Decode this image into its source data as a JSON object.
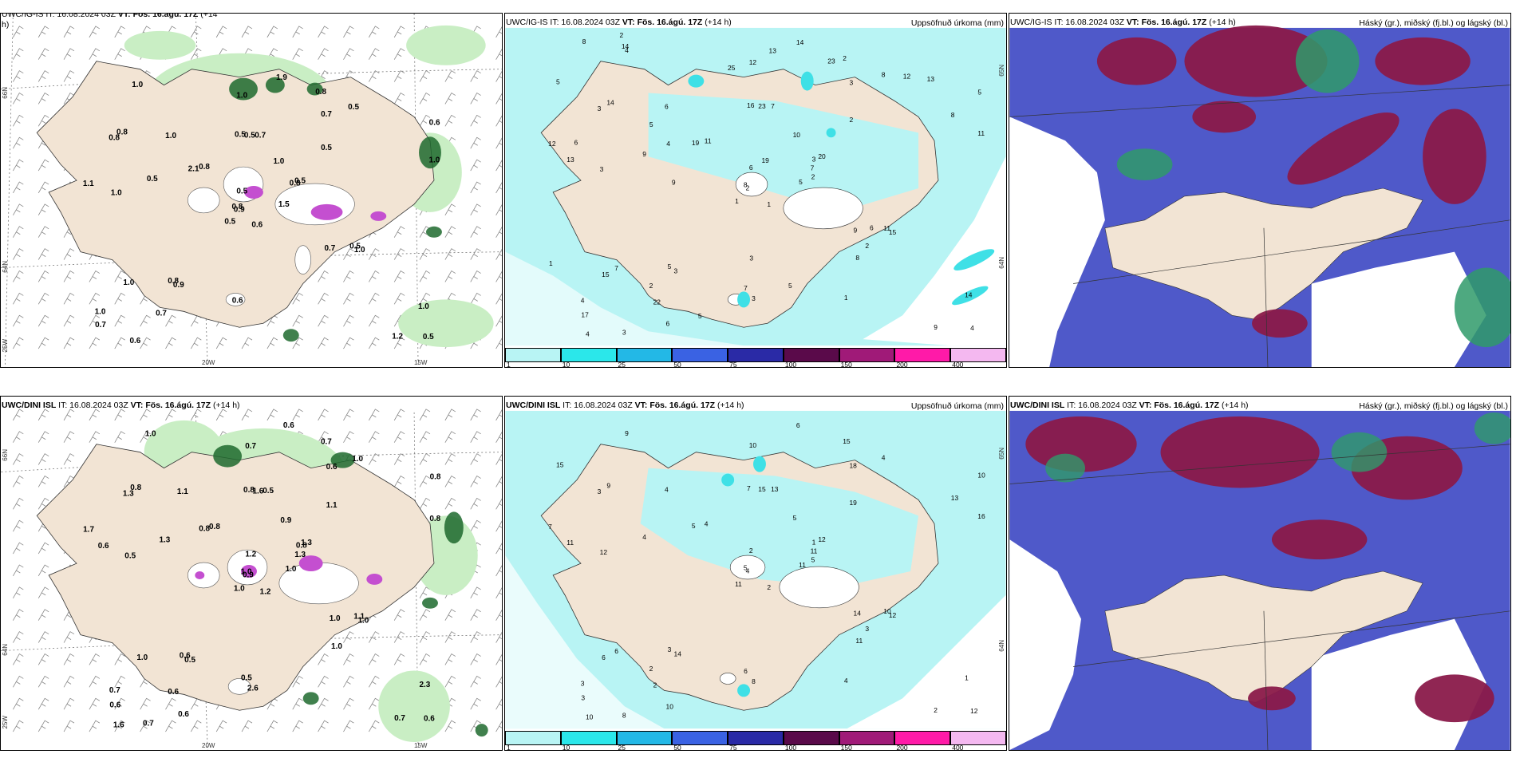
{
  "colors": {
    "land": "#f2e4d4",
    "sea_bg": "#ffffff",
    "precip_light": "#b8f4f4",
    "precip_mid": "#3fe0e6",
    "green_light": "#c9eec4",
    "green_mid": "#8ed68a",
    "green_dark": "#1e6a2e",
    "violet": "#c44fd0",
    "cloud_low": "#4f59c9",
    "cloud_high": "#8a1a4a",
    "cloud_mid_green": "#2f9a6a"
  },
  "rows": [
    {
      "model": "UWC/IG-IS",
      "panels": [
        {
          "title_model": "UWC/IG-IS",
          "title_it": "IT: 16.08.2024 03Z",
          "title_vt": "VT: Fös. 16.ágú. 17Z",
          "title_lead": "(+14",
          "title_lead2": "h)",
          "lat_labels": [
            "66N",
            "64N",
            "25W"
          ],
          "lon_labels": [
            "20W",
            "15W"
          ],
          "values": [
            "0.6",
            "0.8",
            "0.9",
            "1.0",
            "0.8",
            "0.9",
            "0.8",
            "0.7",
            "0.7",
            "1.5",
            "1.0",
            "0.5",
            "1.0",
            "0.6",
            "0.5",
            "0.5",
            "0.6",
            "0.5",
            "1.0",
            "1.0",
            "0.8",
            "0.7",
            "0.7",
            "0.5",
            "0.5",
            "1.0",
            "0.8",
            "1.0",
            "1.1",
            "0.7",
            "1.0",
            "0.8",
            "0.6",
            "0.5",
            "1.0",
            "0.5",
            "0.8",
            "1.2",
            "1.0",
            "0.5",
            "1.9",
            "2.1",
            "0.5"
          ]
        },
        {
          "title_model": "UWC/IG-IS",
          "title_it": "IT: 16.08.2024 03Z",
          "title_vt": "VT: Fös. 16.ágú. 17Z",
          "title_lead": "(+14 h)",
          "right_label": "Uppsöfnuð úrkoma (mm)",
          "lat_labels": [
            "65N",
            "64N"
          ],
          "values": [
            "1",
            "3",
            "2",
            "4",
            "3",
            "3",
            "2",
            "7",
            "3",
            "5",
            "4",
            "4",
            "3",
            "5",
            "1",
            "2",
            "3",
            "16",
            "10",
            "7",
            "11",
            "17",
            "22",
            "23",
            "20",
            "15",
            "14",
            "12",
            "13",
            "9",
            "11",
            "8",
            "7",
            "6",
            "6",
            "8",
            "5",
            "9",
            "14",
            "11",
            "14",
            "19",
            "9",
            "8",
            "6",
            "12",
            "7",
            "4",
            "3",
            "2",
            "15",
            "8",
            "5",
            "2",
            "1",
            "2",
            "14",
            "8",
            "5",
            "13",
            "13",
            "9",
            "6",
            "5",
            "12",
            "2",
            "23",
            "25",
            "19",
            "1",
            "3",
            "5",
            "6",
            "4"
          ]
        },
        {
          "title_model": "UWC/IG-IS",
          "title_it": "IT: 16.08.2024 03Z",
          "title_vt": "VT: Fös. 16.ágú. 17Z",
          "title_lead": "(+14 h)",
          "right_label": "Háský (gr.), miðský (fj.bl.) og lágský (bl.)"
        }
      ]
    },
    {
      "model": "UWC/DINI ISL",
      "panels": [
        {
          "title_model": "UWC/DINI ISL",
          "title_it": "IT: 16.08.2024 03Z",
          "title_vt": "VT: Fös. 16.ágú. 17Z",
          "title_lead": "(+14 h)",
          "lat_labels": [
            "66N",
            "64N",
            "25W"
          ],
          "lon_labels": [
            "20W",
            "15W"
          ],
          "values": [
            "1.2",
            "1.3",
            "0.9",
            "0.7",
            "0.8",
            "0.5",
            "0.7",
            "0.5",
            "0.6",
            "1.0",
            "1.0",
            "0.6",
            "0.5",
            "0.8",
            "1.0",
            "1.1",
            "0.7",
            "0.8",
            "0.9",
            "1.0",
            "0.8",
            "0.6",
            "0.6",
            "1.6",
            "1.3",
            "1.0",
            "0.8",
            "0.7",
            "0.6",
            "1.0",
            "0.8",
            "1.0",
            "0.5",
            "1.2",
            "1.1",
            "1.0",
            "0.6",
            "0.7",
            "2.3",
            "1.1",
            "0.6",
            "0.8",
            "1.3",
            "1.0",
            "0.6",
            "1.7",
            "1.3",
            "1.6",
            "2.6"
          ]
        },
        {
          "title_model": "UWC/DINI ISL",
          "title_it": "IT: 16.08.2024 03Z",
          "title_vt": "VT: Fös. 16.ágú. 17Z",
          "title_lead": "(+14 h)",
          "right_label": "Uppsöfnuð úrkoma (mm)",
          "lat_labels": [
            "65N",
            "64N"
          ],
          "values": [
            "2",
            "3",
            "4",
            "3",
            "1",
            "14",
            "15",
            "13",
            "18",
            "11",
            "9",
            "12",
            "12",
            "10",
            "11",
            "19",
            "8",
            "7",
            "5",
            "6",
            "4",
            "3",
            "2",
            "15",
            "12",
            "12",
            "9",
            "10",
            "11",
            "14",
            "16",
            "5",
            "6",
            "2",
            "4",
            "4",
            "3",
            "2",
            "1",
            "10",
            "6",
            "5",
            "4",
            "11",
            "10",
            "7",
            "11",
            "10",
            "8",
            "5",
            "6",
            "13",
            "15",
            "3",
            "4",
            "2"
          ]
        },
        {
          "title_model": "UWC/DINI ISL",
          "title_it": "IT: 16.08.2024 03Z",
          "title_vt": "VT: Fös. 16.ágú. 17Z",
          "title_lead": "(+14 h)",
          "right_label": "Háský (gr.), miðský (fj.bl.) og lágský (bl.)"
        }
      ]
    }
  ],
  "colorbar": {
    "ticks": [
      "1",
      "10",
      "25",
      "50",
      "75",
      "100",
      "150",
      "200",
      "400"
    ],
    "colors": [
      "#b8f4f4",
      "#2be7ea",
      "#23b8e6",
      "#3a62e3",
      "#2a2aa6",
      "#5a0a4a",
      "#a01a78",
      "#ff1aa8",
      "#f4b8f0"
    ]
  }
}
